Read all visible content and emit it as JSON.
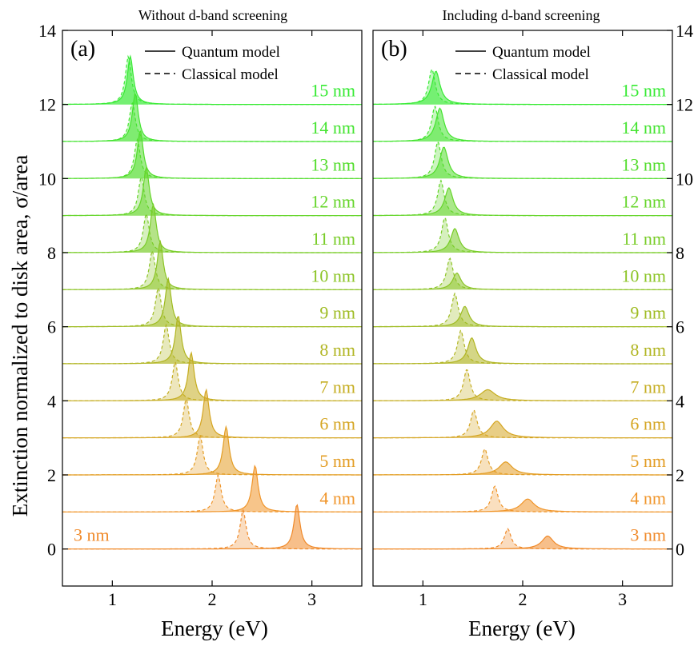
{
  "figure": {
    "ylabel": "Extinction normalized to disk area, σ/area",
    "xlabel": "Energy (eV)",
    "legend": {
      "solid": "Quantum model",
      "dashed": "Classical model"
    }
  },
  "chart_data": [
    {
      "type": "area",
      "panel": "(a)",
      "title": "Without d-band screening",
      "xlabel": "Energy (eV)",
      "ylabel": "Extinction normalized to disk area, σ/area",
      "xlim": [
        0.5,
        3.5
      ],
      "ylim": [
        -1,
        14
      ],
      "xticks": [
        1,
        2,
        3
      ],
      "yticks": [
        0,
        2,
        4,
        6,
        8,
        10,
        12,
        14
      ],
      "yaxis_side": "left",
      "legend": [
        "Quantum model",
        "Classical model"
      ],
      "legend_position": "top-center",
      "series": [
        {
          "label": "3 nm",
          "offset": 0,
          "color": "#f08a2a",
          "quantum": {
            "peak": 2.85,
            "height": 1.2,
            "width": 0.036
          },
          "classical": {
            "peak": 2.31,
            "height": 1.05,
            "width": 0.036
          }
        },
        {
          "label": "4 nm",
          "offset": 1,
          "color": "#f0952a",
          "quantum": {
            "peak": 2.43,
            "height": 1.25,
            "width": 0.036
          },
          "classical": {
            "peak": 2.06,
            "height": 1.0,
            "width": 0.036
          }
        },
        {
          "label": "5 nm",
          "offset": 2,
          "color": "#e39d24",
          "quantum": {
            "peak": 2.14,
            "height": 1.3,
            "width": 0.036
          },
          "classical": {
            "peak": 1.88,
            "height": 1.05,
            "width": 0.036
          }
        },
        {
          "label": "6 nm",
          "offset": 3,
          "color": "#d5a522",
          "quantum": {
            "peak": 1.94,
            "height": 1.3,
            "width": 0.036
          },
          "classical": {
            "peak": 1.74,
            "height": 1.05,
            "width": 0.036
          }
        },
        {
          "label": "7 nm",
          "offset": 4,
          "color": "#c5ad20",
          "quantum": {
            "peak": 1.79,
            "height": 1.3,
            "width": 0.036
          },
          "classical": {
            "peak": 1.63,
            "height": 1.05,
            "width": 0.036
          }
        },
        {
          "label": "8 nm",
          "offset": 5,
          "color": "#b1b522",
          "quantum": {
            "peak": 1.66,
            "height": 1.3,
            "width": 0.036
          },
          "classical": {
            "peak": 1.54,
            "height": 1.05,
            "width": 0.036
          }
        },
        {
          "label": "9 nm",
          "offset": 6,
          "color": "#9fbc23",
          "quantum": {
            "peak": 1.56,
            "height": 1.3,
            "width": 0.036
          },
          "classical": {
            "peak": 1.46,
            "height": 1.05,
            "width": 0.036
          }
        },
        {
          "label": "10 nm",
          "offset": 7,
          "color": "#8bc425",
          "quantum": {
            "peak": 1.48,
            "height": 1.3,
            "width": 0.036
          },
          "classical": {
            "peak": 1.4,
            "height": 1.05,
            "width": 0.036
          }
        },
        {
          "label": "11 nm",
          "offset": 8,
          "color": "#78cc27",
          "quantum": {
            "peak": 1.41,
            "height": 1.3,
            "width": 0.036
          },
          "classical": {
            "peak": 1.34,
            "height": 1.05,
            "width": 0.036
          }
        },
        {
          "label": "12 nm",
          "offset": 9,
          "color": "#65d52a",
          "quantum": {
            "peak": 1.34,
            "height": 1.3,
            "width": 0.036
          },
          "classical": {
            "peak": 1.29,
            "height": 1.05,
            "width": 0.036
          }
        },
        {
          "label": "13 nm",
          "offset": 10,
          "color": "#52dd2c",
          "quantum": {
            "peak": 1.28,
            "height": 1.3,
            "width": 0.036
          },
          "classical": {
            "peak": 1.25,
            "height": 1.05,
            "width": 0.036
          }
        },
        {
          "label": "14 nm",
          "offset": 11,
          "color": "#44e430",
          "quantum": {
            "peak": 1.23,
            "height": 1.3,
            "width": 0.036
          },
          "classical": {
            "peak": 1.2,
            "height": 1.05,
            "width": 0.036
          }
        },
        {
          "label": "15 nm",
          "offset": 12,
          "color": "#36ea33",
          "quantum": {
            "peak": 1.18,
            "height": 1.3,
            "width": 0.036
          },
          "classical": {
            "peak": 1.16,
            "height": 1.3,
            "width": 0.036
          }
        }
      ]
    },
    {
      "type": "area",
      "panel": "(b)",
      "title": "Including d-band screening",
      "xlabel": "Energy (eV)",
      "ylabel": "Extinction normalized to disk area, σ/area",
      "xlim": [
        0.5,
        3.5
      ],
      "ylim": [
        -1,
        14
      ],
      "xticks": [
        1,
        2,
        3
      ],
      "yticks": [
        0,
        2,
        4,
        6,
        8,
        10,
        12,
        14
      ],
      "yaxis_side": "right",
      "legend": [
        "Quantum model",
        "Classical model"
      ],
      "legend_position": "top-center",
      "series": [
        {
          "label": "3 nm",
          "offset": 0,
          "color": "#f08a2a",
          "quantum": {
            "peak": 2.25,
            "height": 0.35,
            "width": 0.07
          },
          "classical": {
            "peak": 1.85,
            "height": 0.55,
            "width": 0.04
          }
        },
        {
          "label": "4 nm",
          "offset": 1,
          "color": "#f0952a",
          "quantum": {
            "peak": 2.05,
            "height": 0.35,
            "width": 0.08
          },
          "classical": {
            "peak": 1.72,
            "height": 0.7,
            "width": 0.04
          }
        },
        {
          "label": "5 nm",
          "offset": 2,
          "color": "#e39d24",
          "quantum": {
            "peak": 1.83,
            "height": 0.35,
            "width": 0.08
          },
          "classical": {
            "peak": 1.62,
            "height": 0.7,
            "width": 0.04
          }
        },
        {
          "label": "6 nm",
          "offset": 3,
          "color": "#d5a522",
          "quantum": {
            "peak": 1.74,
            "height": 0.45,
            "width": 0.08
          },
          "classical": {
            "peak": 1.51,
            "height": 0.75,
            "width": 0.04
          }
        },
        {
          "label": "7 nm",
          "offset": 4,
          "color": "#c5ad20",
          "quantum": {
            "peak": 1.65,
            "height": 0.3,
            "width": 0.09
          },
          "classical": {
            "peak": 1.44,
            "height": 0.85,
            "width": 0.04
          }
        },
        {
          "label": "8 nm",
          "offset": 5,
          "color": "#b1b522",
          "quantum": {
            "peak": 1.49,
            "height": 0.7,
            "width": 0.05
          },
          "classical": {
            "peak": 1.38,
            "height": 0.9,
            "width": 0.04
          }
        },
        {
          "label": "9 nm",
          "offset": 6,
          "color": "#9fbc23",
          "quantum": {
            "peak": 1.42,
            "height": 0.55,
            "width": 0.05
          },
          "classical": {
            "peak": 1.32,
            "height": 0.9,
            "width": 0.04
          }
        },
        {
          "label": "10 nm",
          "offset": 7,
          "color": "#8bc425",
          "quantum": {
            "peak": 1.34,
            "height": 0.45,
            "width": 0.05
          },
          "classical": {
            "peak": 1.27,
            "height": 0.85,
            "width": 0.04
          }
        },
        {
          "label": "11 nm",
          "offset": 8,
          "color": "#78cc27",
          "quantum": {
            "peak": 1.32,
            "height": 0.65,
            "width": 0.05
          },
          "classical": {
            "peak": 1.22,
            "height": 0.95,
            "width": 0.04
          }
        },
        {
          "label": "12 nm",
          "offset": 9,
          "color": "#65d52a",
          "quantum": {
            "peak": 1.26,
            "height": 0.75,
            "width": 0.05
          },
          "classical": {
            "peak": 1.18,
            "height": 0.95,
            "width": 0.04
          }
        },
        {
          "label": "13 nm",
          "offset": 10,
          "color": "#52dd2c",
          "quantum": {
            "peak": 1.21,
            "height": 0.85,
            "width": 0.05
          },
          "classical": {
            "peak": 1.15,
            "height": 1.0,
            "width": 0.04
          }
        },
        {
          "label": "14 nm",
          "offset": 11,
          "color": "#44e430",
          "quantum": {
            "peak": 1.17,
            "height": 0.9,
            "width": 0.05
          },
          "classical": {
            "peak": 1.12,
            "height": 0.95,
            "width": 0.04
          }
        },
        {
          "label": "15 nm",
          "offset": 12,
          "color": "#36ea33",
          "quantum": {
            "peak": 1.13,
            "height": 0.9,
            "width": 0.05
          },
          "classical": {
            "peak": 1.09,
            "height": 0.95,
            "width": 0.04
          }
        }
      ]
    }
  ]
}
